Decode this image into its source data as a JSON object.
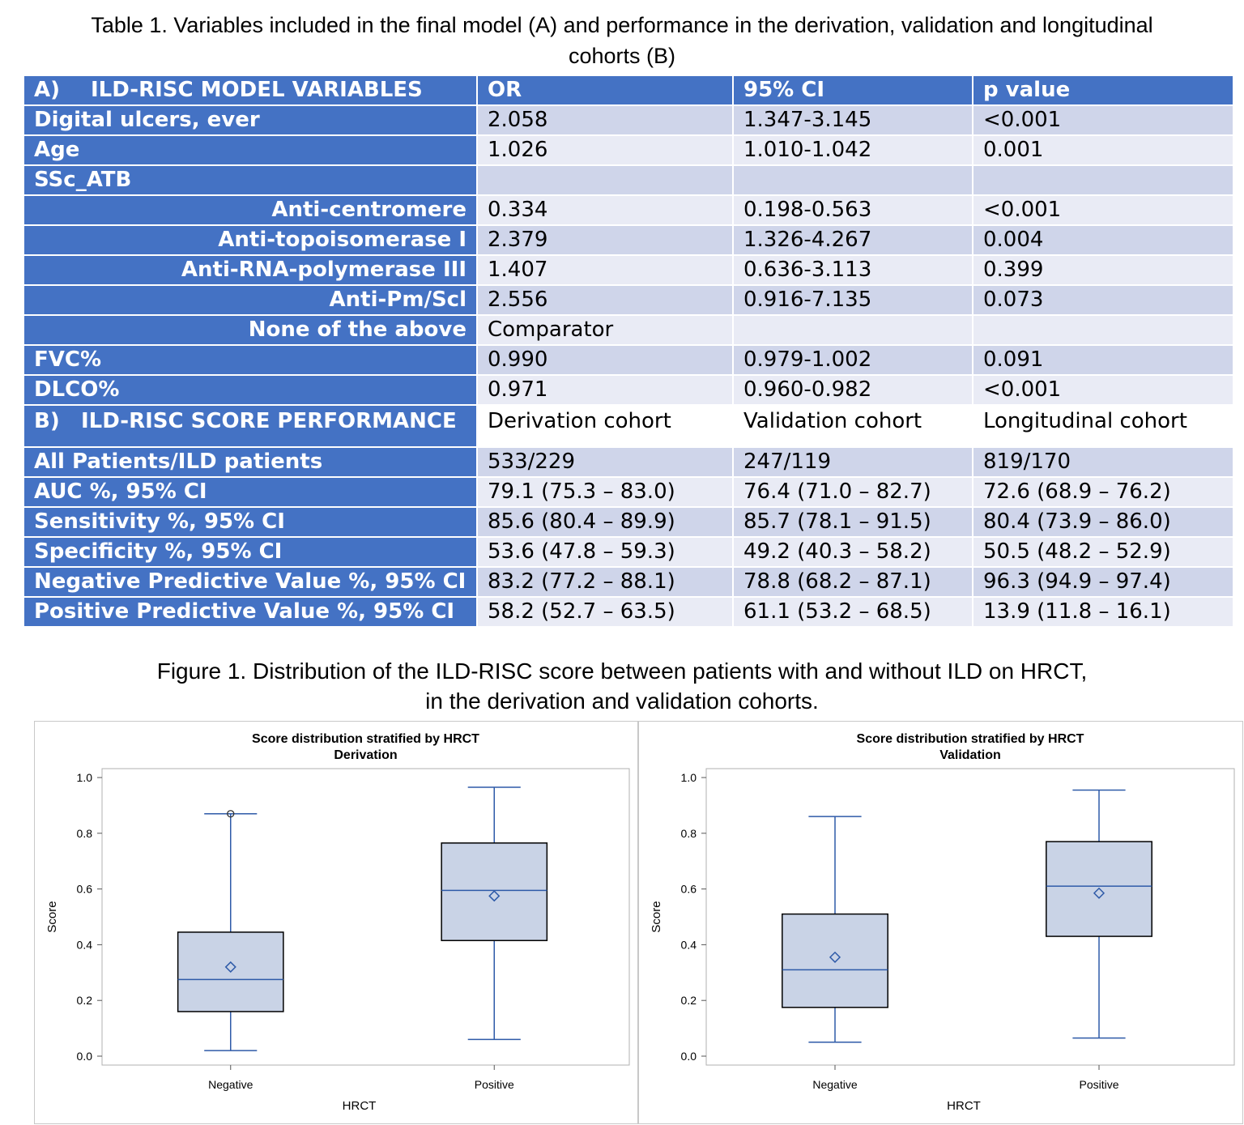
{
  "table_caption": {
    "line1": "Table 1. Variables included in the final model (A) and performance in the derivation, validation and longitudinal",
    "line2": "cohorts (B)"
  },
  "table": {
    "header_a": {
      "prefix": "A)",
      "title": "ILD-RISC MODEL VARIABLES",
      "cols": [
        "OR",
        "95% CI",
        "p value"
      ]
    },
    "rows_a": [
      {
        "label": "Digital ulcers, ever",
        "sub": false,
        "values": [
          "2.058",
          "1.347-3.145",
          "<0.001"
        ]
      },
      {
        "label": "Age",
        "sub": false,
        "values": [
          "1.026",
          "1.010-1.042",
          "0.001"
        ]
      },
      {
        "label": "SSc_ATB",
        "sub": false,
        "values": [
          "",
          "",
          ""
        ]
      },
      {
        "label": "Anti-centromere",
        "sub": true,
        "values": [
          "0.334",
          "0.198-0.563",
          "<0.001"
        ]
      },
      {
        "label": "Anti-topoisomerase I",
        "sub": true,
        "values": [
          "2.379",
          "1.326-4.267",
          "0.004"
        ]
      },
      {
        "label": "Anti-RNA-polymerase III",
        "sub": true,
        "values": [
          "1.407",
          "0.636-3.113",
          "0.399"
        ]
      },
      {
        "label": "Anti-Pm/Scl",
        "sub": true,
        "values": [
          "2.556",
          "0.916-7.135",
          "0.073"
        ]
      },
      {
        "label": "None of the above",
        "sub": true,
        "values": [
          "Comparator",
          "",
          ""
        ]
      },
      {
        "label": "FVC%",
        "sub": false,
        "values": [
          "0.990",
          "0.979-1.002",
          "0.091"
        ]
      },
      {
        "label": "DLCO%",
        "sub": false,
        "values": [
          "0.971",
          "0.960-0.982",
          "<0.001"
        ]
      }
    ],
    "header_b": {
      "prefix": "B)",
      "title": "ILD-RISC SCORE PERFORMANCE",
      "cols": [
        "Derivation cohort",
        "Validation cohort",
        "Longitudinal cohort"
      ]
    },
    "rows_b": [
      {
        "label": "All Patients/ILD patients",
        "values": [
          "533/229",
          "247/119",
          "819/170"
        ]
      },
      {
        "label": "AUC %, 95% CI",
        "values": [
          "79.1 (75.3 – 83.0)",
          "76.4 (71.0 – 82.7)",
          "72.6 (68.9 – 76.2)"
        ]
      },
      {
        "label": "Sensitivity %, 95% CI",
        "values": [
          "85.6 (80.4 – 89.9)",
          "85.7 (78.1 – 91.5)",
          "80.4 (73.9 – 86.0)"
        ]
      },
      {
        "label": "Specificity %, 95% CI",
        "values": [
          "53.6 (47.8 – 59.3)",
          "49.2 (40.3 – 58.2)",
          "50.5 (48.2 – 52.9)"
        ]
      },
      {
        "label": "Negative Predictive Value %, 95% CI",
        "values": [
          "83.2 (77.2 – 88.1)",
          "78.8 (68.2 – 87.1)",
          "96.3 (94.9 – 97.4)"
        ]
      },
      {
        "label": "Positive Predictive Value %, 95% CI",
        "values": [
          "58.2 (52.7 – 63.5)",
          "61.1 (53.2 – 68.5)",
          "13.9 (11.8 – 16.1)"
        ]
      }
    ]
  },
  "figure_caption": {
    "line1": "Figure 1. Distribution of the ILD-RISC score between patients with and without ILD on HRCT,",
    "line2": "in the derivation and validation cohorts."
  },
  "chart_data": [
    {
      "type": "box",
      "title": "Score distribution stratified by HRCT",
      "subtitle": "Derivation",
      "xlabel": "HRCT",
      "ylabel": "Score",
      "ylim": [
        0,
        1
      ],
      "yticks": [
        "0.0",
        "0.2",
        "0.4",
        "0.6",
        "0.8",
        "1.0"
      ],
      "categories": [
        "Negative",
        "Positive"
      ],
      "boxes": [
        {
          "min": 0.02,
          "q1": 0.16,
          "median": 0.275,
          "q3": 0.445,
          "max": 0.87,
          "mean": 0.32,
          "outliers": [
            0.87
          ]
        },
        {
          "min": 0.06,
          "q1": 0.415,
          "median": 0.595,
          "q3": 0.765,
          "max": 0.965,
          "mean": 0.575,
          "outliers": []
        }
      ],
      "colors": {
        "box_fill": "#c9d3e6",
        "line": "#2e5aa8",
        "border": "#000000"
      }
    },
    {
      "type": "box",
      "title": "Score distribution stratified by HRCT",
      "subtitle": "Validation",
      "xlabel": "HRCT",
      "ylabel": "Score",
      "ylim": [
        0,
        1
      ],
      "yticks": [
        "0.0",
        "0.2",
        "0.4",
        "0.6",
        "0.8",
        "1.0"
      ],
      "categories": [
        "Negative",
        "Positive"
      ],
      "boxes": [
        {
          "min": 0.05,
          "q1": 0.175,
          "median": 0.31,
          "q3": 0.51,
          "max": 0.86,
          "mean": 0.355,
          "outliers": []
        },
        {
          "min": 0.065,
          "q1": 0.43,
          "median": 0.61,
          "q3": 0.77,
          "max": 0.955,
          "mean": 0.585,
          "outliers": []
        }
      ],
      "colors": {
        "box_fill": "#c9d3e6",
        "line": "#2e5aa8",
        "border": "#000000"
      }
    }
  ]
}
